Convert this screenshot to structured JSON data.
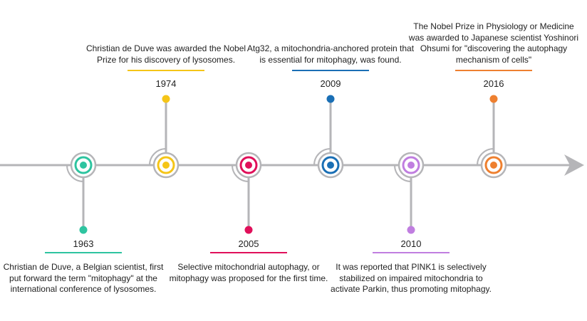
{
  "axis_color": "#b5b5b8",
  "events": [
    {
      "year": "1963",
      "color": "#2ec4a0",
      "side": "down",
      "text": "Christian de Duve, a Belgian scientist, first put forward the term \"mitophagy\" at the international conference of lysosomes."
    },
    {
      "year": "1974",
      "color": "#f5c518",
      "side": "up",
      "text": "Christian de Duve was awarded the Nobel Prize for his discovery of lysosomes."
    },
    {
      "year": "2005",
      "color": "#e0105a",
      "side": "down",
      "text": "Selective mitochondrial autophagy, or mitophagy was proposed for the first time."
    },
    {
      "year": "2009",
      "color": "#1a6fb5",
      "side": "up",
      "text": "Atg32, a mitochondria-anchored protein that is essential for mitophagy, was found."
    },
    {
      "year": "2010",
      "color": "#c07ee0",
      "side": "down",
      "text": "It was reported that PINK1 is selectively stabilized on impaired mitochondria to activate Parkin, thus promoting mitophagy."
    },
    {
      "year": "2016",
      "color": "#ee8030",
      "side": "up",
      "text": "The Nobel Prize in Physiology or Medicine was awarded to Japanese scientist Yoshinori Ohsumi for \"discovering the autophagy mechanism of cells\""
    }
  ]
}
